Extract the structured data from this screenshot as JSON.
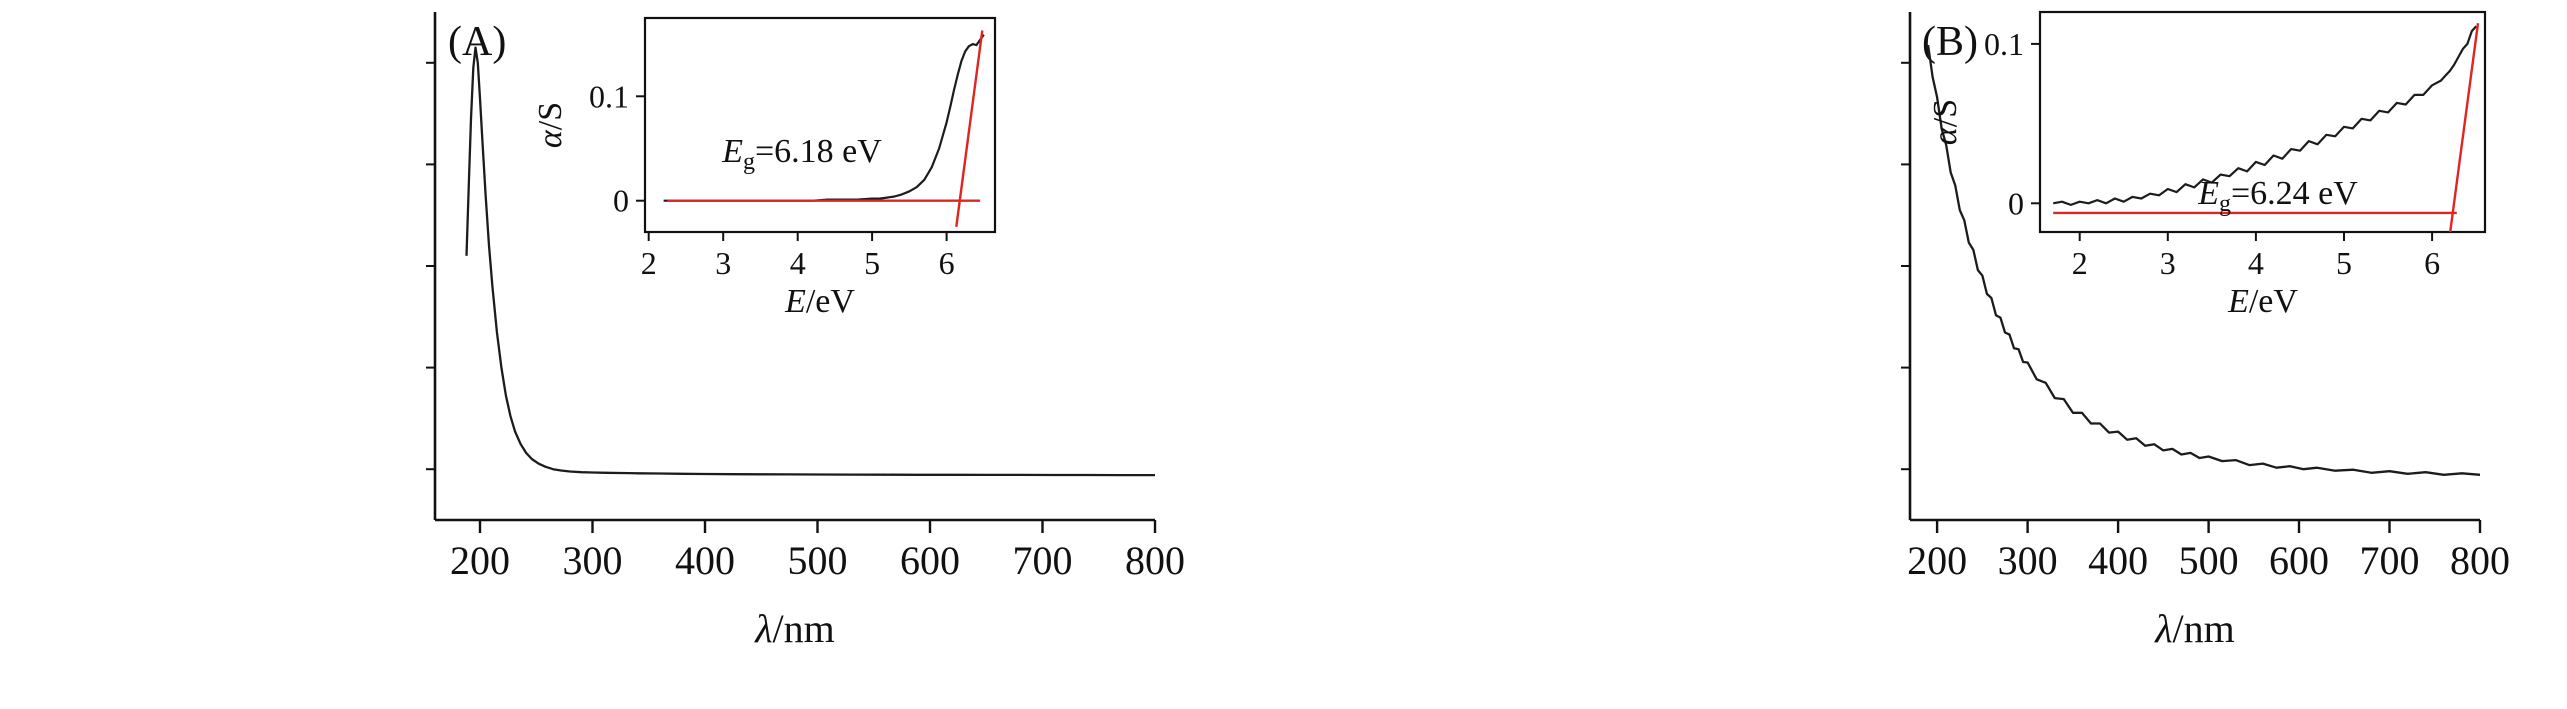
{
  "figure": {
    "background_color": "#ffffff",
    "curve_color": "#1c1c1c",
    "fit_line_color": "#e02420"
  },
  "panels": [
    {
      "label": "(A)",
      "main_chart": 0,
      "inset_chart": 1
    },
    {
      "label": "(B)",
      "main_chart": 2,
      "inset_chart": 3
    }
  ],
  "chart_data": [
    {
      "id": "panel-A-main",
      "type": "line",
      "xlabel": {
        "var": "λ",
        "rest": "/nm"
      },
      "xlim": [
        160,
        800
      ],
      "ylim": [
        0,
        1
      ],
      "xticks": [
        200,
        300,
        400,
        500,
        600,
        700,
        800
      ],
      "x": [
        188,
        190,
        192,
        194,
        196,
        198,
        200,
        202,
        205,
        208,
        211,
        215,
        219,
        223,
        227,
        231,
        236,
        241,
        246,
        252,
        258,
        265,
        272,
        280,
        290,
        300,
        312,
        325,
        340,
        360,
        380,
        400,
        425,
        450,
        475,
        500,
        530,
        560,
        590,
        620,
        650,
        680,
        710,
        740,
        770,
        800
      ],
      "y": [
        0.52,
        0.66,
        0.79,
        0.89,
        0.93,
        0.9,
        0.83,
        0.75,
        0.64,
        0.54,
        0.46,
        0.37,
        0.3,
        0.245,
        0.205,
        0.175,
        0.15,
        0.132,
        0.12,
        0.111,
        0.105,
        0.1,
        0.0975,
        0.0955,
        0.094,
        0.0935,
        0.093,
        0.0925,
        0.092,
        0.0915,
        0.091,
        0.0905,
        0.0902,
        0.09,
        0.0898,
        0.0896,
        0.0894,
        0.0892,
        0.089,
        0.0889,
        0.0888,
        0.0887,
        0.0886,
        0.0885,
        0.0884,
        0.0883
      ]
    },
    {
      "id": "panel-A-inset",
      "type": "line",
      "xlabel": {
        "var": "E",
        "rest": "/eV"
      },
      "ylabel": {
        "var": "α",
        "rest": "/S"
      },
      "xlim": [
        1.95,
        6.65
      ],
      "ylim": [
        -0.03,
        0.175
      ],
      "xticks": [
        2,
        3,
        4,
        5,
        6
      ],
      "yticks": [
        0,
        0.1
      ],
      "annotation": {
        "var": "E",
        "sub": "g",
        "rest": "=6.18 eV"
      },
      "band_gap_eV": 6.18,
      "fit_baseline": {
        "y": 0,
        "x1": 2.25,
        "x2": 6.45
      },
      "fit_tangent": {
        "x1": 6.13,
        "y1": -0.025,
        "x2": 6.48,
        "y2": 0.163
      },
      "x": [
        2.2,
        2.4,
        2.6,
        2.8,
        3.0,
        3.2,
        3.4,
        3.6,
        3.8,
        4.0,
        4.2,
        4.4,
        4.6,
        4.8,
        5.0,
        5.1,
        5.2,
        5.3,
        5.4,
        5.5,
        5.6,
        5.7,
        5.8,
        5.9,
        6.0,
        6.05,
        6.1,
        6.15,
        6.2,
        6.25,
        6.3,
        6.35,
        6.4,
        6.45,
        6.5
      ],
      "y": [
        0.0,
        0.0,
        0.0,
        0.0,
        0.0,
        0.0,
        0.0,
        0.0,
        0.0,
        0.0,
        0.0,
        0.001,
        0.001,
        0.001,
        0.002,
        0.002,
        0.003,
        0.004,
        0.006,
        0.009,
        0.013,
        0.02,
        0.032,
        0.05,
        0.075,
        0.09,
        0.106,
        0.121,
        0.134,
        0.143,
        0.148,
        0.15,
        0.149,
        0.154,
        0.159
      ]
    },
    {
      "id": "panel-B-main",
      "type": "line",
      "xlabel": {
        "var": "λ",
        "rest": "/nm"
      },
      "xlim": [
        170,
        800
      ],
      "ylim": [
        0,
        1
      ],
      "xticks": [
        200,
        300,
        400,
        500,
        600,
        700,
        800
      ],
      "x": [
        190,
        195,
        200,
        205,
        210,
        215,
        220,
        225,
        230,
        235,
        240,
        245,
        250,
        255,
        260,
        265,
        270,
        275,
        280,
        285,
        290,
        295,
        300,
        310,
        320,
        330,
        340,
        350,
        360,
        370,
        380,
        390,
        400,
        410,
        420,
        430,
        440,
        450,
        460,
        470,
        480,
        490,
        500,
        515,
        530,
        545,
        560,
        575,
        590,
        605,
        620,
        640,
        660,
        680,
        700,
        720,
        740,
        760,
        780,
        800
      ],
      "y": [
        0.935,
        0.872,
        0.832,
        0.77,
        0.738,
        0.684,
        0.659,
        0.61,
        0.59,
        0.546,
        0.532,
        0.492,
        0.481,
        0.445,
        0.437,
        0.403,
        0.398,
        0.369,
        0.365,
        0.338,
        0.336,
        0.311,
        0.31,
        0.277,
        0.27,
        0.24,
        0.238,
        0.211,
        0.211,
        0.19,
        0.19,
        0.172,
        0.174,
        0.158,
        0.161,
        0.146,
        0.149,
        0.137,
        0.14,
        0.129,
        0.132,
        0.122,
        0.125,
        0.116,
        0.118,
        0.108,
        0.111,
        0.103,
        0.106,
        0.1,
        0.103,
        0.097,
        0.099,
        0.093,
        0.096,
        0.091,
        0.094,
        0.089,
        0.092,
        0.089
      ]
    },
    {
      "id": "panel-B-inset",
      "type": "line",
      "xlabel": {
        "var": "E",
        "rest": "/eV"
      },
      "ylabel": {
        "var": "α",
        "rest": "/S"
      },
      "xlim": [
        1.55,
        6.6
      ],
      "ylim": [
        -0.018,
        0.12
      ],
      "xticks": [
        2,
        3,
        4,
        5,
        6
      ],
      "yticks": [
        0,
        0.1
      ],
      "annotation": {
        "var": "E",
        "sub": "g",
        "rest": "=6.24 eV"
      },
      "band_gap_eV": 6.24,
      "fit_baseline": {
        "y": -0.006,
        "x1": 1.7,
        "x2": 6.28
      },
      "fit_tangent": {
        "x1": 6.205,
        "y1": -0.018,
        "x2": 6.52,
        "y2": 0.113
      },
      "x": [
        1.7,
        1.8,
        1.9,
        2.0,
        2.1,
        2.2,
        2.3,
        2.4,
        2.5,
        2.6,
        2.7,
        2.8,
        2.9,
        3.0,
        3.1,
        3.2,
        3.3,
        3.4,
        3.5,
        3.6,
        3.7,
        3.8,
        3.9,
        4.0,
        4.1,
        4.2,
        4.3,
        4.4,
        4.5,
        4.6,
        4.7,
        4.8,
        4.9,
        5.0,
        5.1,
        5.2,
        5.3,
        5.4,
        5.5,
        5.6,
        5.7,
        5.8,
        5.9,
        6.0,
        6.1,
        6.15,
        6.2,
        6.25,
        6.3,
        6.35,
        6.4,
        6.45,
        6.5
      ],
      "y": [
        0.0,
        0.001,
        -0.001,
        0.001,
        0.0,
        0.002,
        0.0,
        0.003,
        0.001,
        0.004,
        0.003,
        0.006,
        0.005,
        0.009,
        0.007,
        0.012,
        0.01,
        0.015,
        0.013,
        0.018,
        0.017,
        0.022,
        0.02,
        0.026,
        0.024,
        0.03,
        0.028,
        0.034,
        0.033,
        0.039,
        0.037,
        0.043,
        0.042,
        0.048,
        0.047,
        0.053,
        0.052,
        0.058,
        0.057,
        0.063,
        0.062,
        0.068,
        0.068,
        0.074,
        0.077,
        0.08,
        0.083,
        0.087,
        0.092,
        0.097,
        0.1,
        0.108,
        0.111
      ]
    }
  ]
}
